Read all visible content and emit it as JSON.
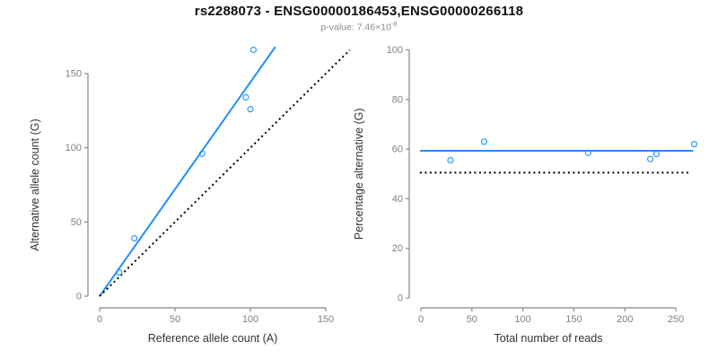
{
  "header": {
    "title": "rs2288073 - ENSG00000186453,ENSG00000266118",
    "pvalue_prefix": "p-value: 7.46×10",
    "pvalue_exponent": "-8"
  },
  "colors": {
    "accent_blue": "#1E90FF",
    "dotted_black": "#000000",
    "axis_line_gray": "#888888",
    "tick_label_gray": "#7f7f7f",
    "axis_title_color": "#333333",
    "title_color": "#111111",
    "subtitle_gray": "#8c8c8c",
    "background": "#ffffff"
  },
  "chart_data": [
    {
      "id": "allele-count-scatter",
      "type": "scatter",
      "title": "",
      "xlabel": "Reference allele count (A)",
      "ylabel": "Alternative allele count (G)",
      "xlim": [
        0,
        150
      ],
      "ylim": [
        0,
        150
      ],
      "xticks": [
        0,
        50,
        100,
        150
      ],
      "yticks": [
        0,
        50,
        100,
        150
      ],
      "grid": false,
      "legend": null,
      "marker": "open-circle",
      "points": [
        [
          13,
          16
        ],
        [
          23,
          39
        ],
        [
          68,
          96
        ],
        [
          97,
          134
        ],
        [
          100,
          126
        ],
        [
          102,
          166
        ]
      ],
      "lines": [
        {
          "name": "regression-line",
          "style": "solid",
          "color": "#1E90FF",
          "width": 2,
          "from": [
            0,
            0
          ],
          "to": [
            116.5,
            168
          ]
        },
        {
          "name": "identity-line",
          "style": "dotted",
          "color": "#000000",
          "width": 2,
          "from": [
            0,
            0
          ],
          "to": [
            166,
            166
          ]
        }
      ]
    },
    {
      "id": "percentage-reads-scatter",
      "type": "scatter",
      "title": "",
      "xlabel": "Total number of reads",
      "ylabel": "Percentage alternative (G)",
      "xlim": [
        0,
        250
      ],
      "ylim": [
        0,
        100
      ],
      "xticks": [
        0,
        50,
        100,
        150,
        200,
        250
      ],
      "yticks": [
        0,
        20,
        40,
        60,
        80,
        100
      ],
      "grid": false,
      "legend": null,
      "marker": "open-circle",
      "points": [
        [
          29,
          55.5
        ],
        [
          62,
          63
        ],
        [
          164,
          58.5
        ],
        [
          225,
          56
        ],
        [
          231,
          58
        ],
        [
          268,
          62
        ]
      ],
      "lines": [
        {
          "name": "mean-percentage-line",
          "style": "solid",
          "color": "#1E90FF",
          "width": 2,
          "from": [
            -1,
            59.3
          ],
          "to": [
            267,
            59.3
          ]
        },
        {
          "name": "fifty-percent-line",
          "style": "dotted",
          "color": "#000000",
          "width": 2,
          "from": [
            -1,
            50.5
          ],
          "to": [
            264,
            50.5
          ]
        }
      ]
    }
  ]
}
